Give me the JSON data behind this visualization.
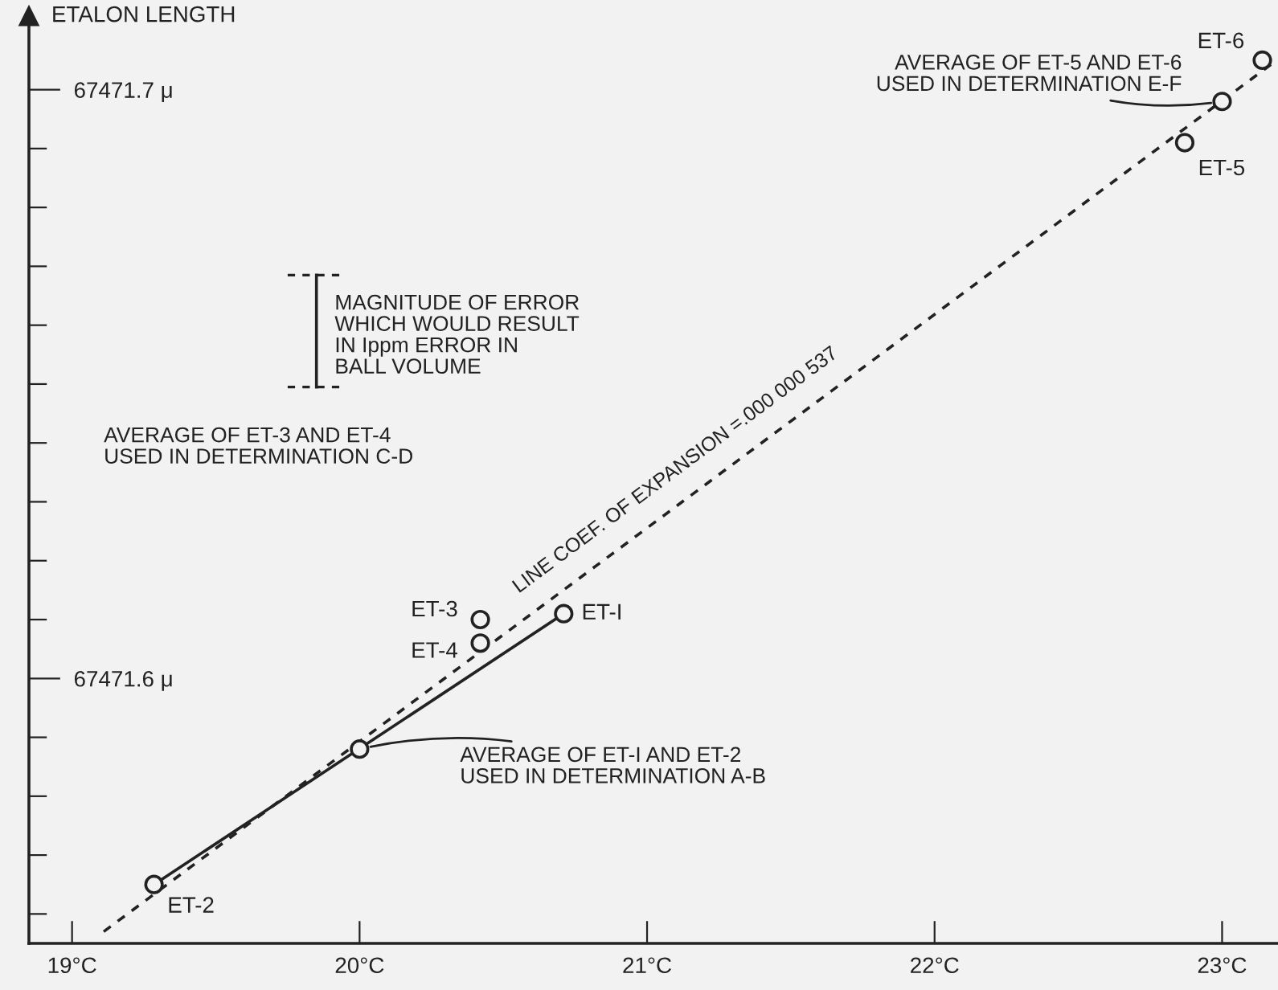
{
  "chart_data": {
    "type": "scatter",
    "ylabel": "ETALON LENGTH",
    "xlim": [
      18.85,
      23.19
    ],
    "ylim": [
      67471.555,
      67471.7125
    ],
    "xticks": [
      {
        "value": 19,
        "label": "19°C"
      },
      {
        "value": 20,
        "label": "20°C"
      },
      {
        "value": 21,
        "label": "21°C"
      },
      {
        "value": 22,
        "label": "22°C"
      },
      {
        "value": 23,
        "label": "23°C"
      }
    ],
    "yticks": [
      {
        "value": 67471.56,
        "label": null
      },
      {
        "value": 67471.57,
        "label": null
      },
      {
        "value": 67471.58,
        "label": null
      },
      {
        "value": 67471.59,
        "label": null
      },
      {
        "value": 67471.6,
        "label": "67471.6 μ"
      },
      {
        "value": 67471.61,
        "label": null
      },
      {
        "value": 67471.62,
        "label": null
      },
      {
        "value": 67471.63,
        "label": null
      },
      {
        "value": 67471.64,
        "label": null
      },
      {
        "value": 67471.65,
        "label": null
      },
      {
        "value": 67471.66,
        "label": null
      },
      {
        "value": 67471.67,
        "label": null
      },
      {
        "value": 67471.68,
        "label": null
      },
      {
        "value": 67471.69,
        "label": null
      },
      {
        "value": 67471.7,
        "label": "67471.7 μ"
      }
    ],
    "grid": false,
    "series": [
      {
        "type": "line",
        "name": "LINE COEF. OF EXPANSION =.000 000 537",
        "color": "#222222",
        "line_style": "dashed",
        "marker": "none",
        "x": [
          19.11,
          23.19
        ],
        "values": [
          67471.557,
          67471.705
        ]
      },
      {
        "type": "line",
        "color": "#222222",
        "line_style": "solid",
        "marker": "none",
        "x": [
          19.285,
          20.71
        ],
        "values": [
          67471.565,
          67471.611
        ]
      },
      {
        "color": "#222222",
        "marker": "circle",
        "x": [
          19.285,
          20.0,
          20.71,
          20.42,
          20.42,
          22.87,
          23.0,
          23.14
        ],
        "values": [
          67471.565,
          67471.588,
          67471.611,
          67471.61,
          67471.606,
          67471.691,
          67471.698,
          67471.705
        ],
        "value_labels": [
          "ET-2",
          null,
          "ET-I",
          "ET-3",
          "ET-4",
          "ET-5",
          null,
          "ET-6"
        ]
      },
      {
        "type": "line",
        "color": "#222222",
        "line_style": "solid",
        "marker": "none",
        "x": [
          19.85,
          19.85
        ],
        "values": [
          67471.6495,
          67471.6685
        ]
      }
    ],
    "annotations": [
      "MAGNITUDE OF ERROR\nWHICH WOULD RESULT\nIN Ippm ERROR IN\nBALL VOLUME",
      "AVERAGE OF ET-3 AND ET-4\nUSED IN DETERMINATION C-D",
      {
        "text": "AVERAGE OF ET-I AND ET-2\nUSED IN DETERMINATION A-B",
        "x": 20.0,
        "y": 67471.588
      },
      {
        "text": "AVERAGE OF ET-5 AND ET-6\nUSED IN DETERMINATION E-F",
        "x": 23.0,
        "y": 67471.698
      }
    ]
  }
}
